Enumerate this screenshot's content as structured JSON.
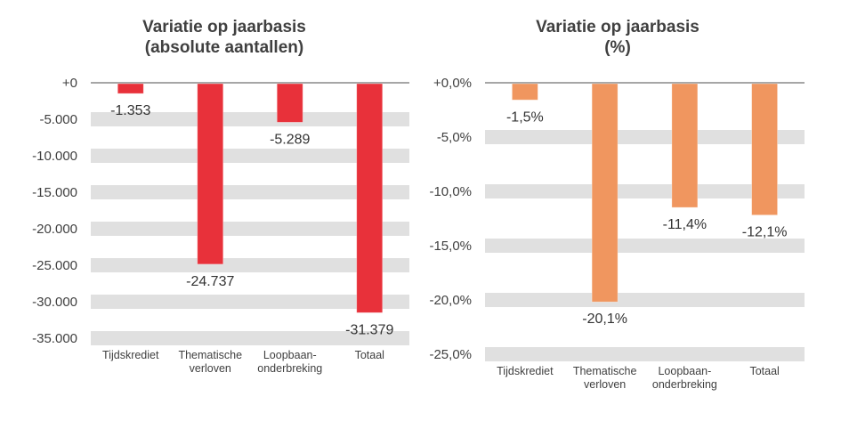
{
  "chart_data": [
    {
      "type": "bar",
      "title": [
        "Variatie op jaarbasis",
        "(absolute aantallen)"
      ],
      "categories": [
        [
          "Tijdskrediet"
        ],
        [
          "Thematische",
          "verloven"
        ],
        [
          "Loopbaan-",
          "onderbreking"
        ],
        [
          "Totaal"
        ]
      ],
      "values": [
        -1353,
        -24737,
        -5289,
        -31379
      ],
      "data_labels": [
        "-1.353",
        "-24.737",
        "-5.289",
        "-31.379"
      ],
      "yticks": [
        0,
        -5000,
        -10000,
        -15000,
        -20000,
        -25000,
        -30000,
        -35000
      ],
      "ytick_labels": [
        "+0",
        "-5.000",
        "-10.000",
        "-15.000",
        "-20.000",
        "-25.000",
        "-30.000",
        "-35.000"
      ],
      "ylim": [
        -35000,
        0
      ],
      "xlabel": "",
      "ylabel": "",
      "grid": true,
      "legend": "none",
      "bar_color": "#E8313A"
    },
    {
      "type": "bar",
      "title": [
        "Variatie op jaarbasis",
        "(%)"
      ],
      "categories": [
        [
          "Tijdskrediet"
        ],
        [
          "Thematische",
          "verloven"
        ],
        [
          "Loopbaan-",
          "onderbreking"
        ],
        [
          "Totaal"
        ]
      ],
      "values": [
        -1.5,
        -20.1,
        -11.4,
        -12.1
      ],
      "data_labels": [
        "-1,5%",
        "-20,1%",
        "-11,4%",
        "-12,1%"
      ],
      "yticks": [
        0,
        -5,
        -10,
        -15,
        -20,
        -25
      ],
      "ytick_labels": [
        "+0,0%",
        "-5,0%",
        "-10,0%",
        "-15,0%",
        "-20,0%",
        "-25,0%"
      ],
      "ylim": [
        -25,
        0
      ],
      "xlabel": "",
      "ylabel": "",
      "grid": true,
      "legend": "none",
      "bar_color": "#F0965F"
    }
  ],
  "colors": {
    "band": "#E0E0E0",
    "zero_axis": "#A6A6A6",
    "text": "#404040"
  }
}
